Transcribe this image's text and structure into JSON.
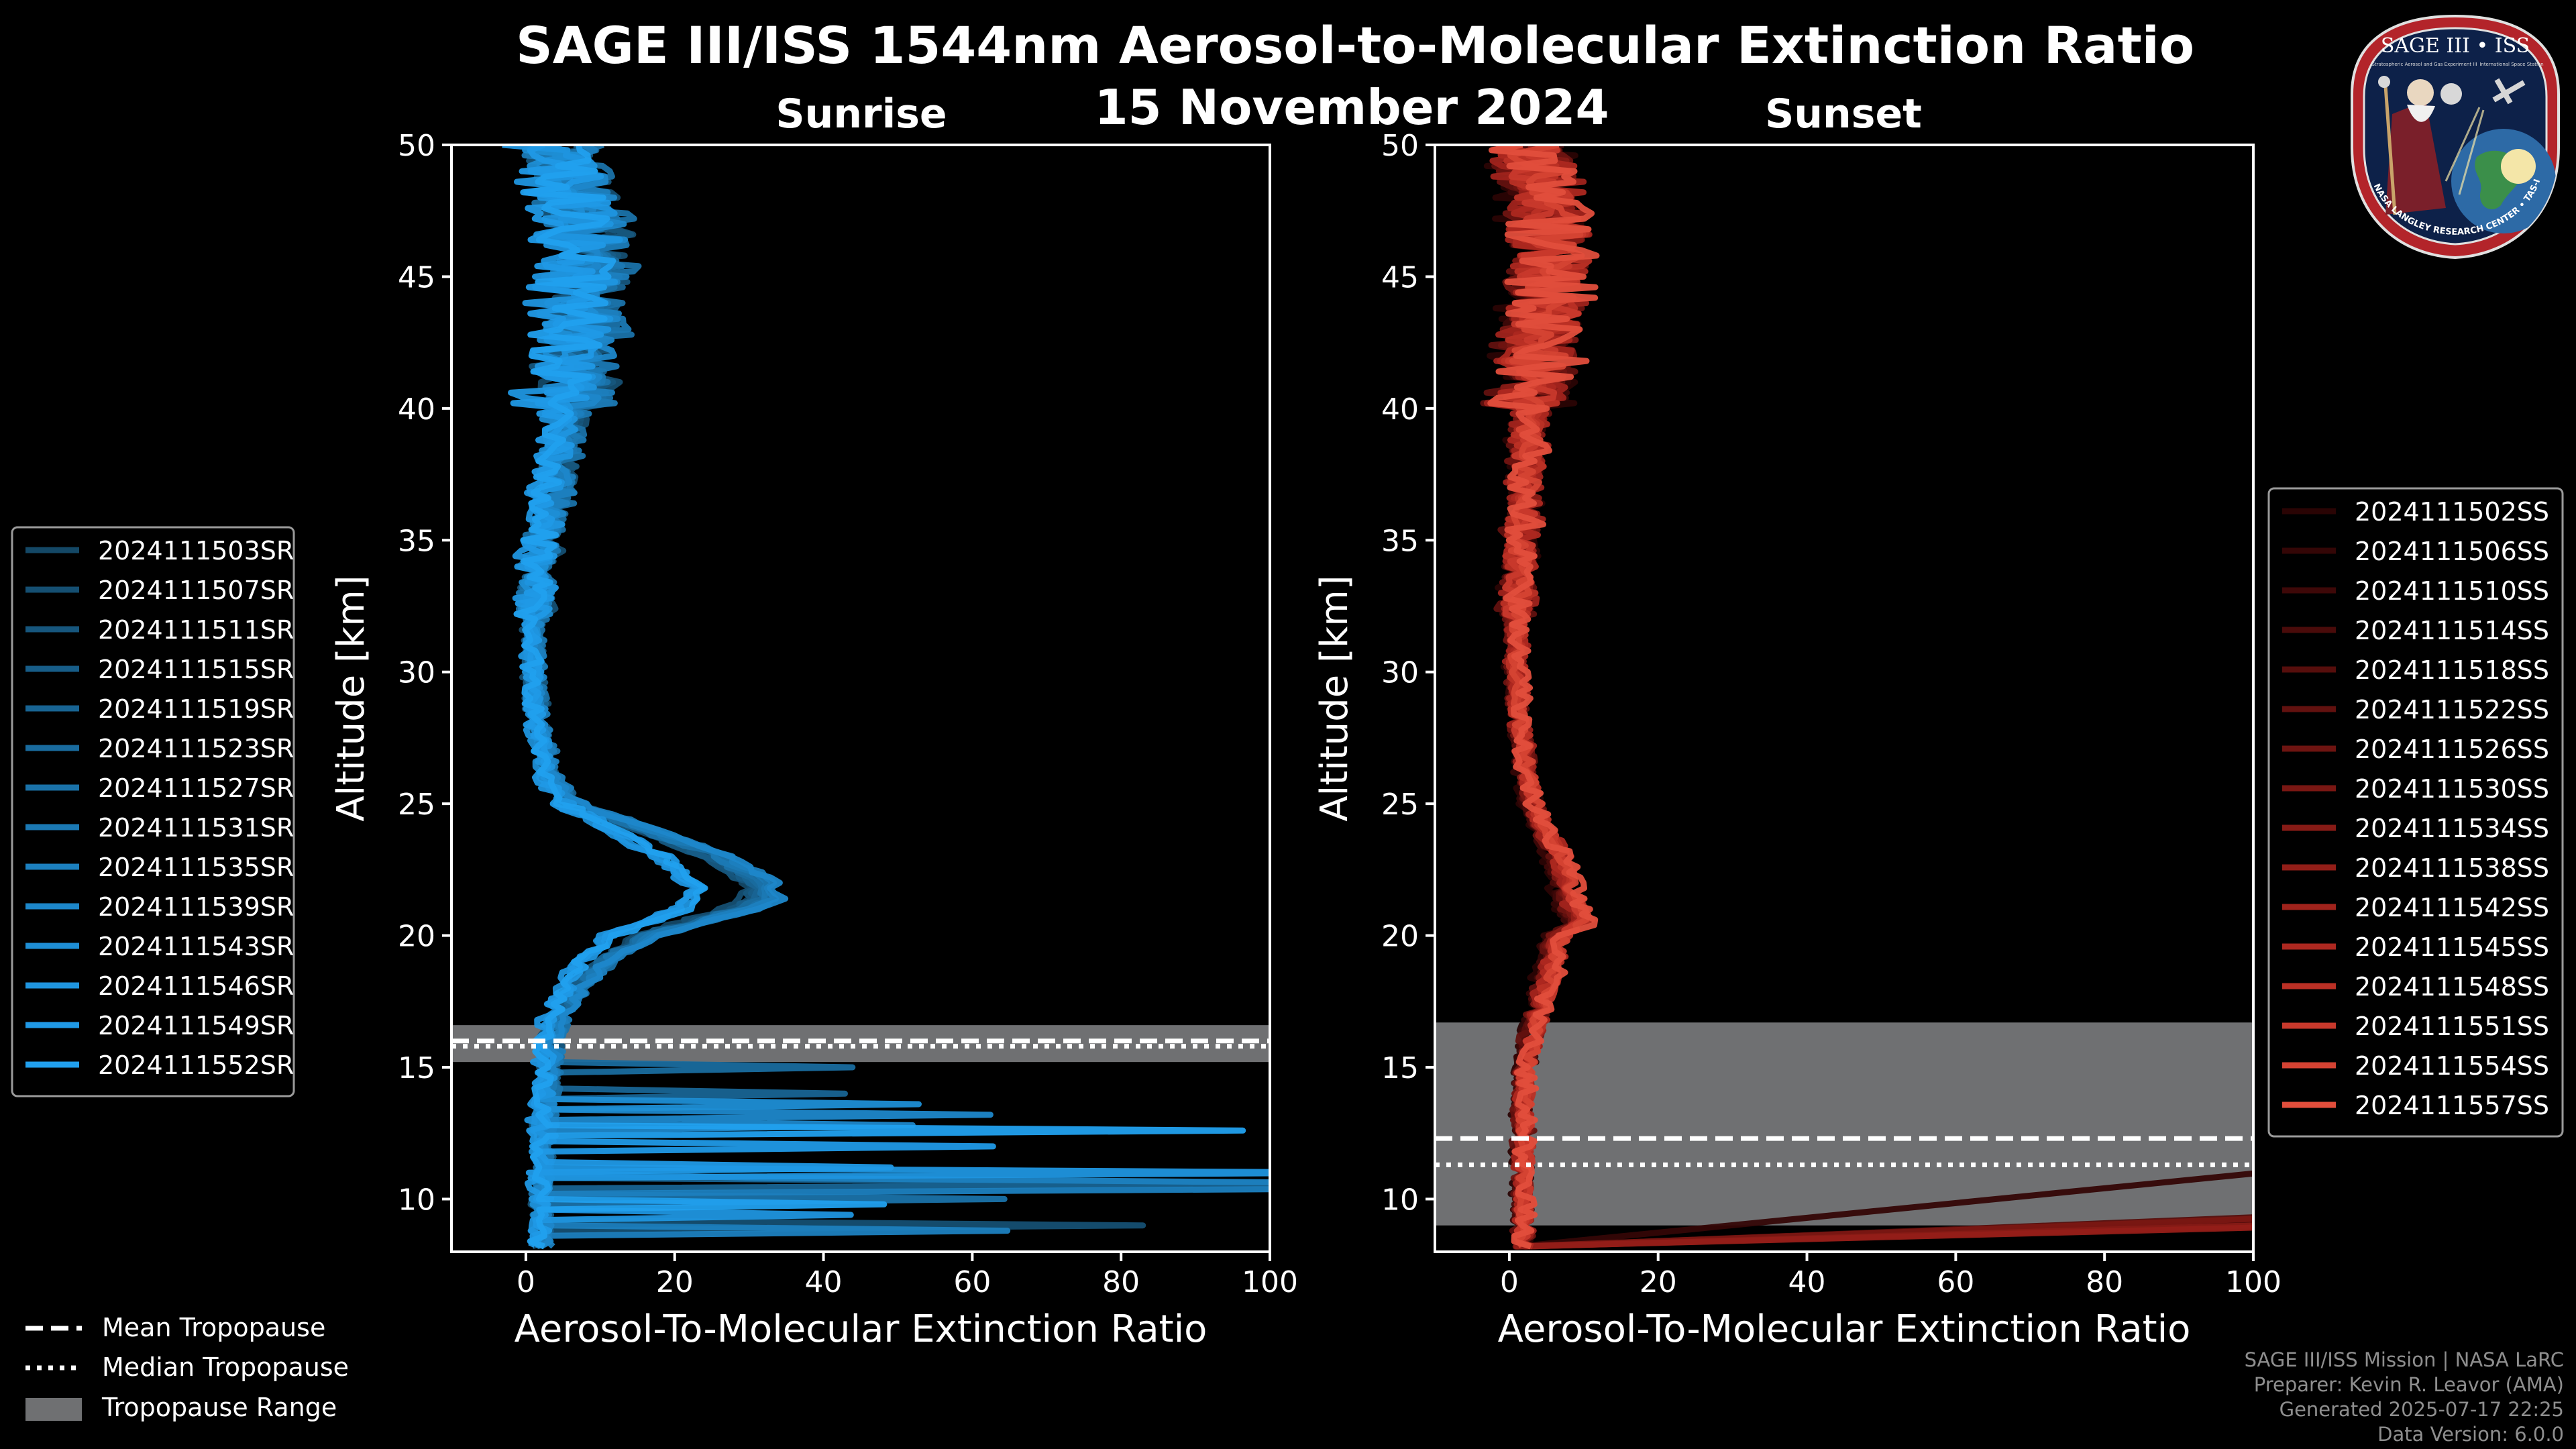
{
  "chart_data": {
    "type": "line",
    "title": "SAGE III/ISS 1544nm Aerosol-to-Molecular Extinction Ratio",
    "subtitle": "15 November 2024",
    "panels": [
      {
        "name": "Sunrise",
        "xlabel": "Aerosol-To-Molecular Extinction Ratio",
        "ylabel": "Altitude [km]",
        "xlim": [
          -10,
          100
        ],
        "ylim": [
          8,
          50
        ],
        "xticks": [
          0,
          20,
          40,
          60,
          80,
          100
        ],
        "yticks": [
          10,
          15,
          20,
          25,
          30,
          35,
          40,
          45,
          50
        ],
        "legend_position": "outside-left",
        "tropopause": {
          "mean": 16.0,
          "median": 15.8,
          "range": [
            15.2,
            16.6
          ]
        },
        "series_colors": [
          "#144866",
          "#154f72",
          "#16567d",
          "#175d88",
          "#186493",
          "#196b9e",
          "#1a72a9",
          "#1b79b4",
          "#1c80bf",
          "#1d87ca",
          "#1e8ed5",
          "#1f95df",
          "#2099e6",
          "#21a0ee"
        ],
        "series": [
          {
            "name": "2024111503SR"
          },
          {
            "name": "2024111507SR"
          },
          {
            "name": "2024111511SR"
          },
          {
            "name": "2024111515SR"
          },
          {
            "name": "2024111519SR"
          },
          {
            "name": "2024111523SR"
          },
          {
            "name": "2024111527SR"
          },
          {
            "name": "2024111531SR"
          },
          {
            "name": "2024111535SR"
          },
          {
            "name": "2024111539SR"
          },
          {
            "name": "2024111543SR"
          },
          {
            "name": "2024111546SR"
          },
          {
            "name": "2024111549SR"
          },
          {
            "name": "2024111552SR"
          }
        ],
        "typical_profile": {
          "altitude": [
            50,
            48,
            46,
            44,
            42,
            40,
            38,
            36,
            34,
            32,
            30,
            28,
            26,
            25,
            24,
            23,
            22,
            21.5,
            21,
            20,
            19,
            18,
            17,
            16,
            15,
            14,
            12,
            10,
            8
          ],
          "ratio": [
            4,
            6,
            8,
            7,
            6,
            5,
            4,
            3,
            1.5,
            1,
            1,
            1.5,
            3,
            6,
            14,
            22,
            27,
            28,
            25,
            14,
            9,
            6,
            4,
            3,
            3,
            2.5,
            2,
            2,
            2
          ]
        }
      },
      {
        "name": "Sunset",
        "xlabel": "Aerosol-To-Molecular Extinction Ratio",
        "ylabel": "Altitude [km]",
        "xlim": [
          -10,
          100
        ],
        "ylim": [
          8,
          50
        ],
        "xticks": [
          0,
          20,
          40,
          60,
          80,
          100
        ],
        "yticks": [
          10,
          15,
          20,
          25,
          30,
          35,
          40,
          45,
          50
        ],
        "legend_position": "outside-right",
        "tropopause": {
          "mean": 12.3,
          "median": 11.3,
          "range": [
            9.0,
            16.7
          ]
        },
        "series_colors": [
          "#2a0404",
          "#340606",
          "#3e0808",
          "#4a0b0a",
          "#560e0c",
          "#62110f",
          "#6e1411",
          "#7a1713",
          "#871b16",
          "#931e18",
          "#a0231c",
          "#ad2820",
          "#bb3025",
          "#c8392c",
          "#d54333",
          "#e24e3c"
        ],
        "series": [
          {
            "name": "2024111502SS"
          },
          {
            "name": "2024111506SS"
          },
          {
            "name": "2024111510SS"
          },
          {
            "name": "2024111514SS"
          },
          {
            "name": "2024111518SS"
          },
          {
            "name": "2024111522SS"
          },
          {
            "name": "2024111526SS"
          },
          {
            "name": "2024111530SS"
          },
          {
            "name": "2024111534SS"
          },
          {
            "name": "2024111538SS"
          },
          {
            "name": "2024111542SS"
          },
          {
            "name": "2024111545SS"
          },
          {
            "name": "2024111548SS"
          },
          {
            "name": "2024111551SS"
          },
          {
            "name": "2024111554SS"
          },
          {
            "name": "2024111557SS"
          }
        ],
        "typical_profile": {
          "altitude": [
            50,
            48,
            46,
            44,
            42,
            40,
            38,
            36,
            34,
            32,
            30,
            28,
            26,
            25,
            24,
            23,
            22,
            21,
            20.5,
            20,
            19,
            18,
            17,
            16,
            15,
            14,
            12,
            10,
            8
          ],
          "ratio": [
            3,
            5,
            6,
            5,
            4,
            3,
            2.5,
            2,
            1.5,
            1,
            1,
            1.5,
            2.5,
            3.5,
            5,
            7,
            8,
            9,
            10,
            7,
            6,
            5,
            4,
            3,
            2.5,
            2,
            2,
            2,
            2
          ]
        }
      }
    ],
    "bottom_legend": {
      "mean": "Mean Tropopause",
      "median": "Median Tropopause",
      "range": "Tropopause Range"
    }
  },
  "credits": [
    "SAGE III/ISS Mission | NASA LaRC",
    "Preparer: Kevin R. Leavor (AMA)",
    "Generated 2025-07-17 22:25",
    "Data Version: 6.0.0"
  ],
  "badge": {
    "title": "SAGE III • ISS",
    "ring_text": "BALL • NASA LANGLEY RESEARCH CENTER • TAS-I • ESA",
    "subtitle_left": "Stratospheric Aerosol and Gas Experiment III",
    "subtitle_right": "International Space Station"
  },
  "colors": {
    "background": "#000000",
    "sunrise_accent": "#1f95df",
    "sunset_accent": "#e24e3c",
    "tropopause_range": "#6f7072"
  }
}
